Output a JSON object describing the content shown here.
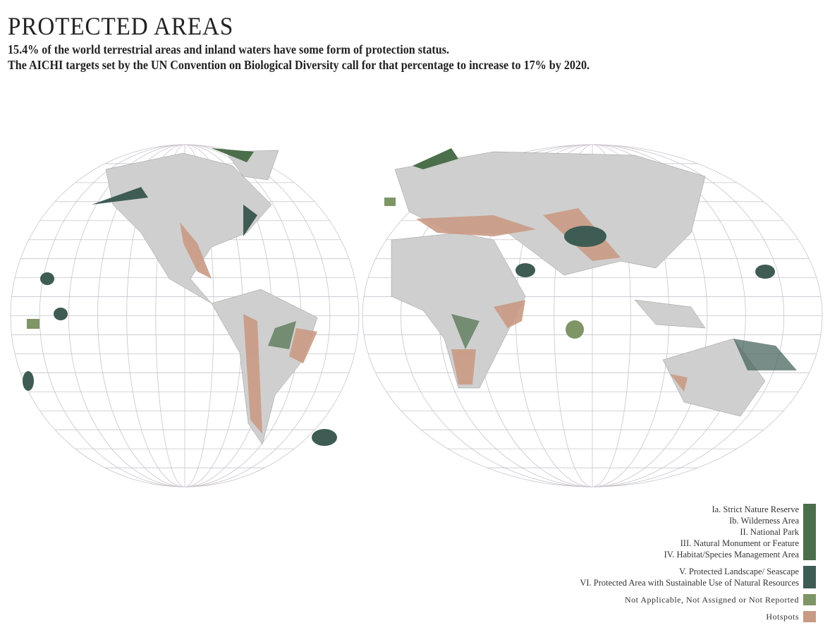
{
  "title": "PROTECTED AREAS",
  "subtitle_lines": [
    "15.4% of the world terrestrial areas and inland waters have some form of protection status.",
    "The AICHI targets set by the UN Convention on Biological Diversity call for that percentage to increase to 17% by 2020."
  ],
  "legend": [
    {
      "labels": [
        "Ia. Strict Nature Reserve",
        "Ib. Wilderness Area",
        "II. National Park",
        "III. Natural Monument or Feature",
        "IV. Habitat/Species Management Area"
      ],
      "color": "#4b6f4a"
    },
    {
      "labels": [
        "V. Protected Landscape/ Seascape",
        "VI. Protected Area with Sustainable Use of Natural Resources"
      ],
      "color": "#3e5c54"
    },
    {
      "labels": [
        "Not Applicable, Not Assigned or Not Reported"
      ],
      "color": "#7e9566"
    },
    {
      "labels": [
        "Hotspots"
      ],
      "color": "#c99a84"
    }
  ],
  "colors": {
    "land": "#cfcfcf",
    "graticule": "#c9c4cc"
  }
}
